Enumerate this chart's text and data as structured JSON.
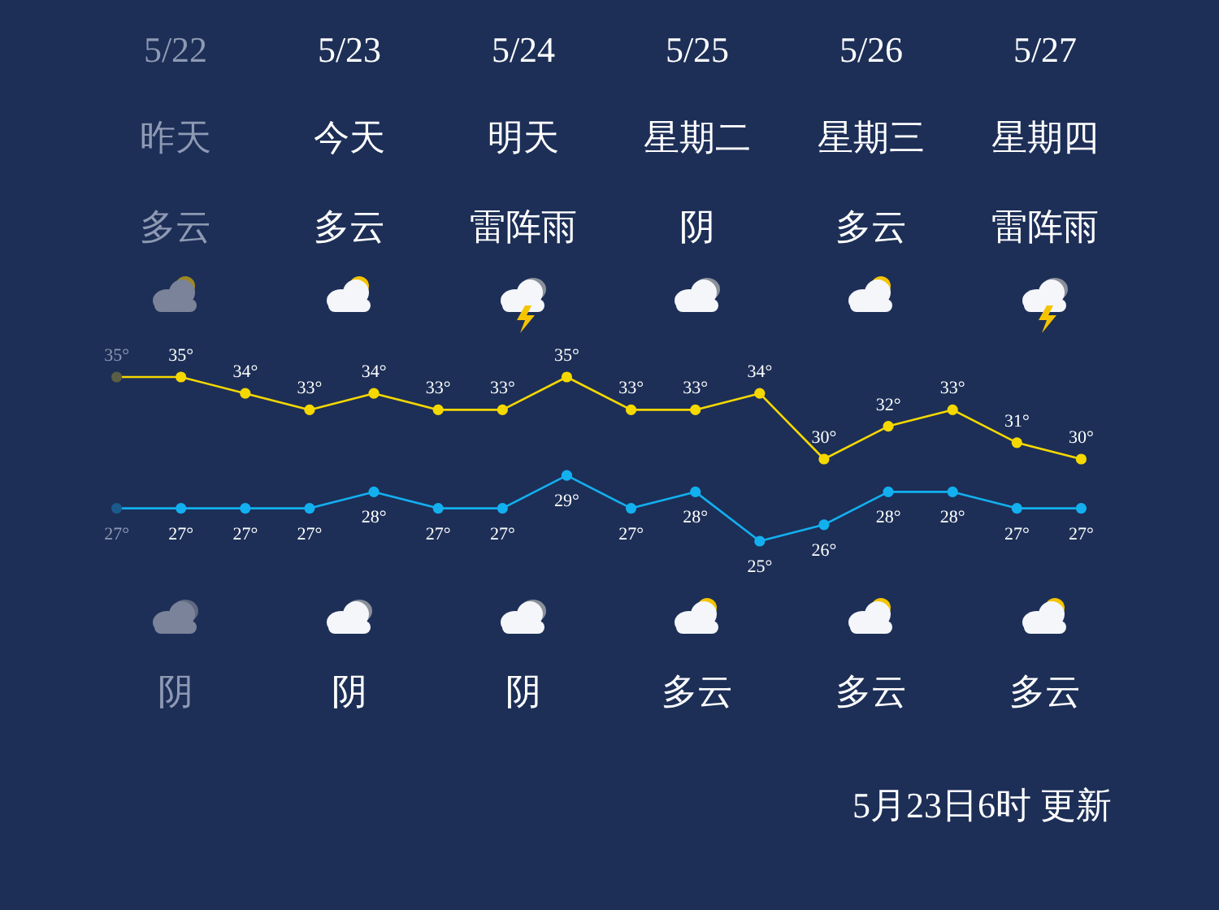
{
  "chart_data": {
    "type": "line",
    "categories": [
      null,
      null,
      null,
      null,
      null,
      null,
      null,
      null,
      null,
      null,
      null,
      null,
      null,
      null,
      null,
      null
    ],
    "series": [
      {
        "color": "#f5d800",
        "colors": [
          "#5b5e45",
          "#f5d800",
          "#f5d800",
          "#f5d800",
          "#f5d800",
          "#f5d800",
          "#f5d800",
          "#f5d800",
          "#f5d800",
          "#f5d800",
          "#f5d800",
          "#f5d800",
          "#f5d800",
          "#f5d800",
          "#f5d800",
          "#f5d800"
        ],
        "values": [
          35,
          35,
          34,
          33,
          34,
          33,
          33,
          35,
          33,
          33,
          34,
          30,
          32,
          33,
          31,
          30
        ],
        "value_labels": [
          "35°",
          "35°",
          "34°",
          "33°",
          "34°",
          "33°",
          "33°",
          "35°",
          "33°",
          "33°",
          "34°",
          "30°",
          "32°",
          "33°",
          "31°",
          "30°"
        ]
      },
      {
        "color": "#13b0f0",
        "colors": [
          "#1c5a8c",
          "#13b0f0",
          "#13b0f0",
          "#13b0f0",
          "#13b0f0",
          "#13b0f0",
          "#13b0f0",
          "#13b0f0",
          "#13b0f0",
          "#13b0f0",
          "#13b0f0",
          "#13b0f0",
          "#13b0f0",
          "#13b0f0",
          "#13b0f0",
          "#13b0f0"
        ],
        "values": [
          27,
          27,
          27,
          27,
          28,
          27,
          27,
          29,
          27,
          28,
          25,
          26,
          28,
          28,
          27,
          27
        ],
        "value_labels": [
          "27°",
          "27°",
          "27°",
          "27°",
          "28°",
          "27°",
          "27°",
          "29°",
          "27°",
          "28°",
          "25°",
          "26°",
          "28°",
          "28°",
          "27°",
          "27°"
        ]
      }
    ],
    "marker": "circle",
    "annotations": [
      "5/22",
      "5/23",
      "5/24",
      "5/25",
      "5/26",
      "5/27",
      "昨天",
      "今天",
      "明天",
      "星期二",
      "星期三",
      "星期四",
      "多云",
      "多云",
      "雷阵雨",
      "阴",
      "多云",
      "雷阵雨",
      "阴",
      "阴",
      "阴",
      "多云",
      "多云",
      "多云",
      "5月23日6时 更新"
    ]
  }
}
